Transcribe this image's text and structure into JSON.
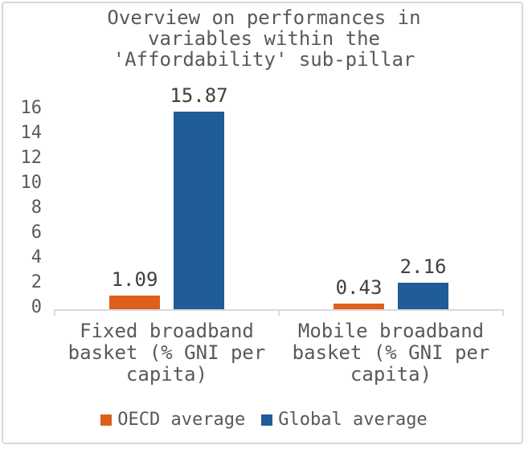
{
  "figure": {
    "background": "#FFFFFF",
    "border_color": "#D8D8D8"
  },
  "chart_data": {
    "type": "bar",
    "title": "Overview on performances in\nvariables within the\n'Affordability' sub-pillar",
    "categories": [
      "Fixed broadband\nbasket (% GNI per\ncapita)",
      "Mobile broadband\nbasket (% GNI per\ncapita)"
    ],
    "series": [
      {
        "name": "OECD average",
        "color": "#DD5F1C",
        "values": [
          1.09,
          0.43
        ]
      },
      {
        "name": "Global average",
        "color": "#1F5C99",
        "values": [
          15.87,
          2.16
        ]
      }
    ],
    "value_labels": [
      [
        "1.09",
        "0.43"
      ],
      [
        "15.87",
        "2.16"
      ]
    ],
    "yticks": [
      0,
      2,
      4,
      6,
      8,
      10,
      12,
      14,
      16
    ],
    "ylim": [
      0,
      16
    ],
    "xlabel": "",
    "ylabel": "",
    "grid": "off",
    "legend_position": "bottom",
    "axis_color": "#D9D9D9",
    "text_color": "#595959",
    "value_label_color": "#404040"
  }
}
